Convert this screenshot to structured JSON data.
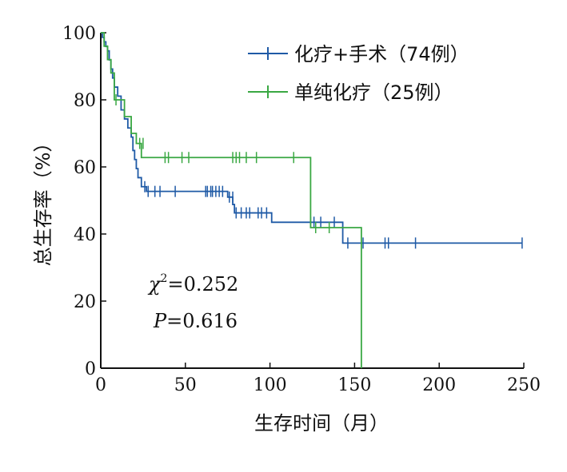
{
  "chart_data": {
    "type": "line",
    "title": "",
    "xlabel": "生存时间（月）",
    "ylabel": "总生存率（%）",
    "xlim": [
      0,
      250
    ],
    "ylim": [
      0,
      100
    ],
    "xticks": [
      0,
      50,
      100,
      150,
      200,
      250
    ],
    "yticks": [
      0,
      20,
      40,
      60,
      80,
      100
    ],
    "xtick_labels": [
      "0",
      "50",
      "100",
      "150",
      "200",
      "250"
    ],
    "ytick_labels": [
      "0",
      "20",
      "40",
      "60",
      "80",
      "100"
    ],
    "grid": false,
    "legend_position": "top-right",
    "stats": {
      "chi_symbol": "χ",
      "chi_superscript": "2",
      "chi_value": "=0.252",
      "p_symbol": "P",
      "p_value": "=0.616"
    },
    "series": [
      {
        "name": "化疗+手术（74例）",
        "color": "#1f5aa6",
        "steps": [
          [
            0,
            100
          ],
          [
            1,
            98.6
          ],
          [
            2,
            97.3
          ],
          [
            3,
            95.9
          ],
          [
            4,
            94.6
          ],
          [
            5,
            91.9
          ],
          [
            6,
            89.2
          ],
          [
            7,
            86.5
          ],
          [
            8,
            83.8
          ],
          [
            10,
            81.1
          ],
          [
            12,
            77.0
          ],
          [
            14,
            74.3
          ],
          [
            16,
            71.6
          ],
          [
            18,
            68.9
          ],
          [
            19,
            64.9
          ],
          [
            20,
            62.2
          ],
          [
            21,
            59.5
          ],
          [
            22,
            56.8
          ],
          [
            24,
            54.1
          ],
          [
            27,
            52.7
          ],
          [
            60,
            52.7
          ],
          [
            75,
            51.0
          ],
          [
            78,
            48.8
          ],
          [
            79,
            46.3
          ],
          [
            100,
            46.3
          ],
          [
            101,
            43.5
          ],
          [
            141,
            43.5
          ],
          [
            143,
            37.3
          ],
          [
            249,
            37.3
          ]
        ],
        "censored": [
          [
            26,
            54.1
          ],
          [
            28,
            52.7
          ],
          [
            32,
            52.7
          ],
          [
            35,
            52.7
          ],
          [
            44,
            52.7
          ],
          [
            62,
            52.7
          ],
          [
            63,
            52.7
          ],
          [
            65,
            52.7
          ],
          [
            66,
            52.7
          ],
          [
            68,
            52.7
          ],
          [
            70,
            52.7
          ],
          [
            72,
            52.7
          ],
          [
            76,
            51.0
          ],
          [
            78,
            51.0
          ],
          [
            80,
            46.3
          ],
          [
            83,
            46.3
          ],
          [
            86,
            46.3
          ],
          [
            88,
            46.3
          ],
          [
            93,
            46.3
          ],
          [
            95,
            46.3
          ],
          [
            98,
            46.3
          ],
          [
            124,
            43.5
          ],
          [
            126,
            43.5
          ],
          [
            130,
            43.5
          ],
          [
            138,
            43.5
          ],
          [
            146,
            37.3
          ],
          [
            155,
            37.3
          ],
          [
            168,
            37.3
          ],
          [
            170,
            37.3
          ],
          [
            186,
            37.3
          ],
          [
            249,
            37.3
          ]
        ]
      },
      {
        "name": "单纯化疗（25例）",
        "color": "#3aa843",
        "steps": [
          [
            0,
            100
          ],
          [
            2,
            96
          ],
          [
            4,
            92
          ],
          [
            6,
            88
          ],
          [
            8,
            80
          ],
          [
            12,
            80
          ],
          [
            14,
            75
          ],
          [
            18,
            70
          ],
          [
            21,
            67
          ],
          [
            24,
            62.8
          ],
          [
            123,
            62.8
          ],
          [
            124,
            41.9
          ],
          [
            153,
            41.9
          ],
          [
            154,
            0
          ]
        ],
        "censored": [
          [
            9,
            80
          ],
          [
            23,
            67
          ],
          [
            25,
            67
          ],
          [
            38,
            62.8
          ],
          [
            40,
            62.8
          ],
          [
            48,
            62.8
          ],
          [
            52,
            62.8
          ],
          [
            78,
            62.8
          ],
          [
            80,
            62.8
          ],
          [
            82,
            62.8
          ],
          [
            86,
            62.8
          ],
          [
            92,
            62.8
          ],
          [
            114,
            62.8
          ],
          [
            127,
            41.9
          ],
          [
            135,
            41.9
          ]
        ]
      }
    ]
  }
}
